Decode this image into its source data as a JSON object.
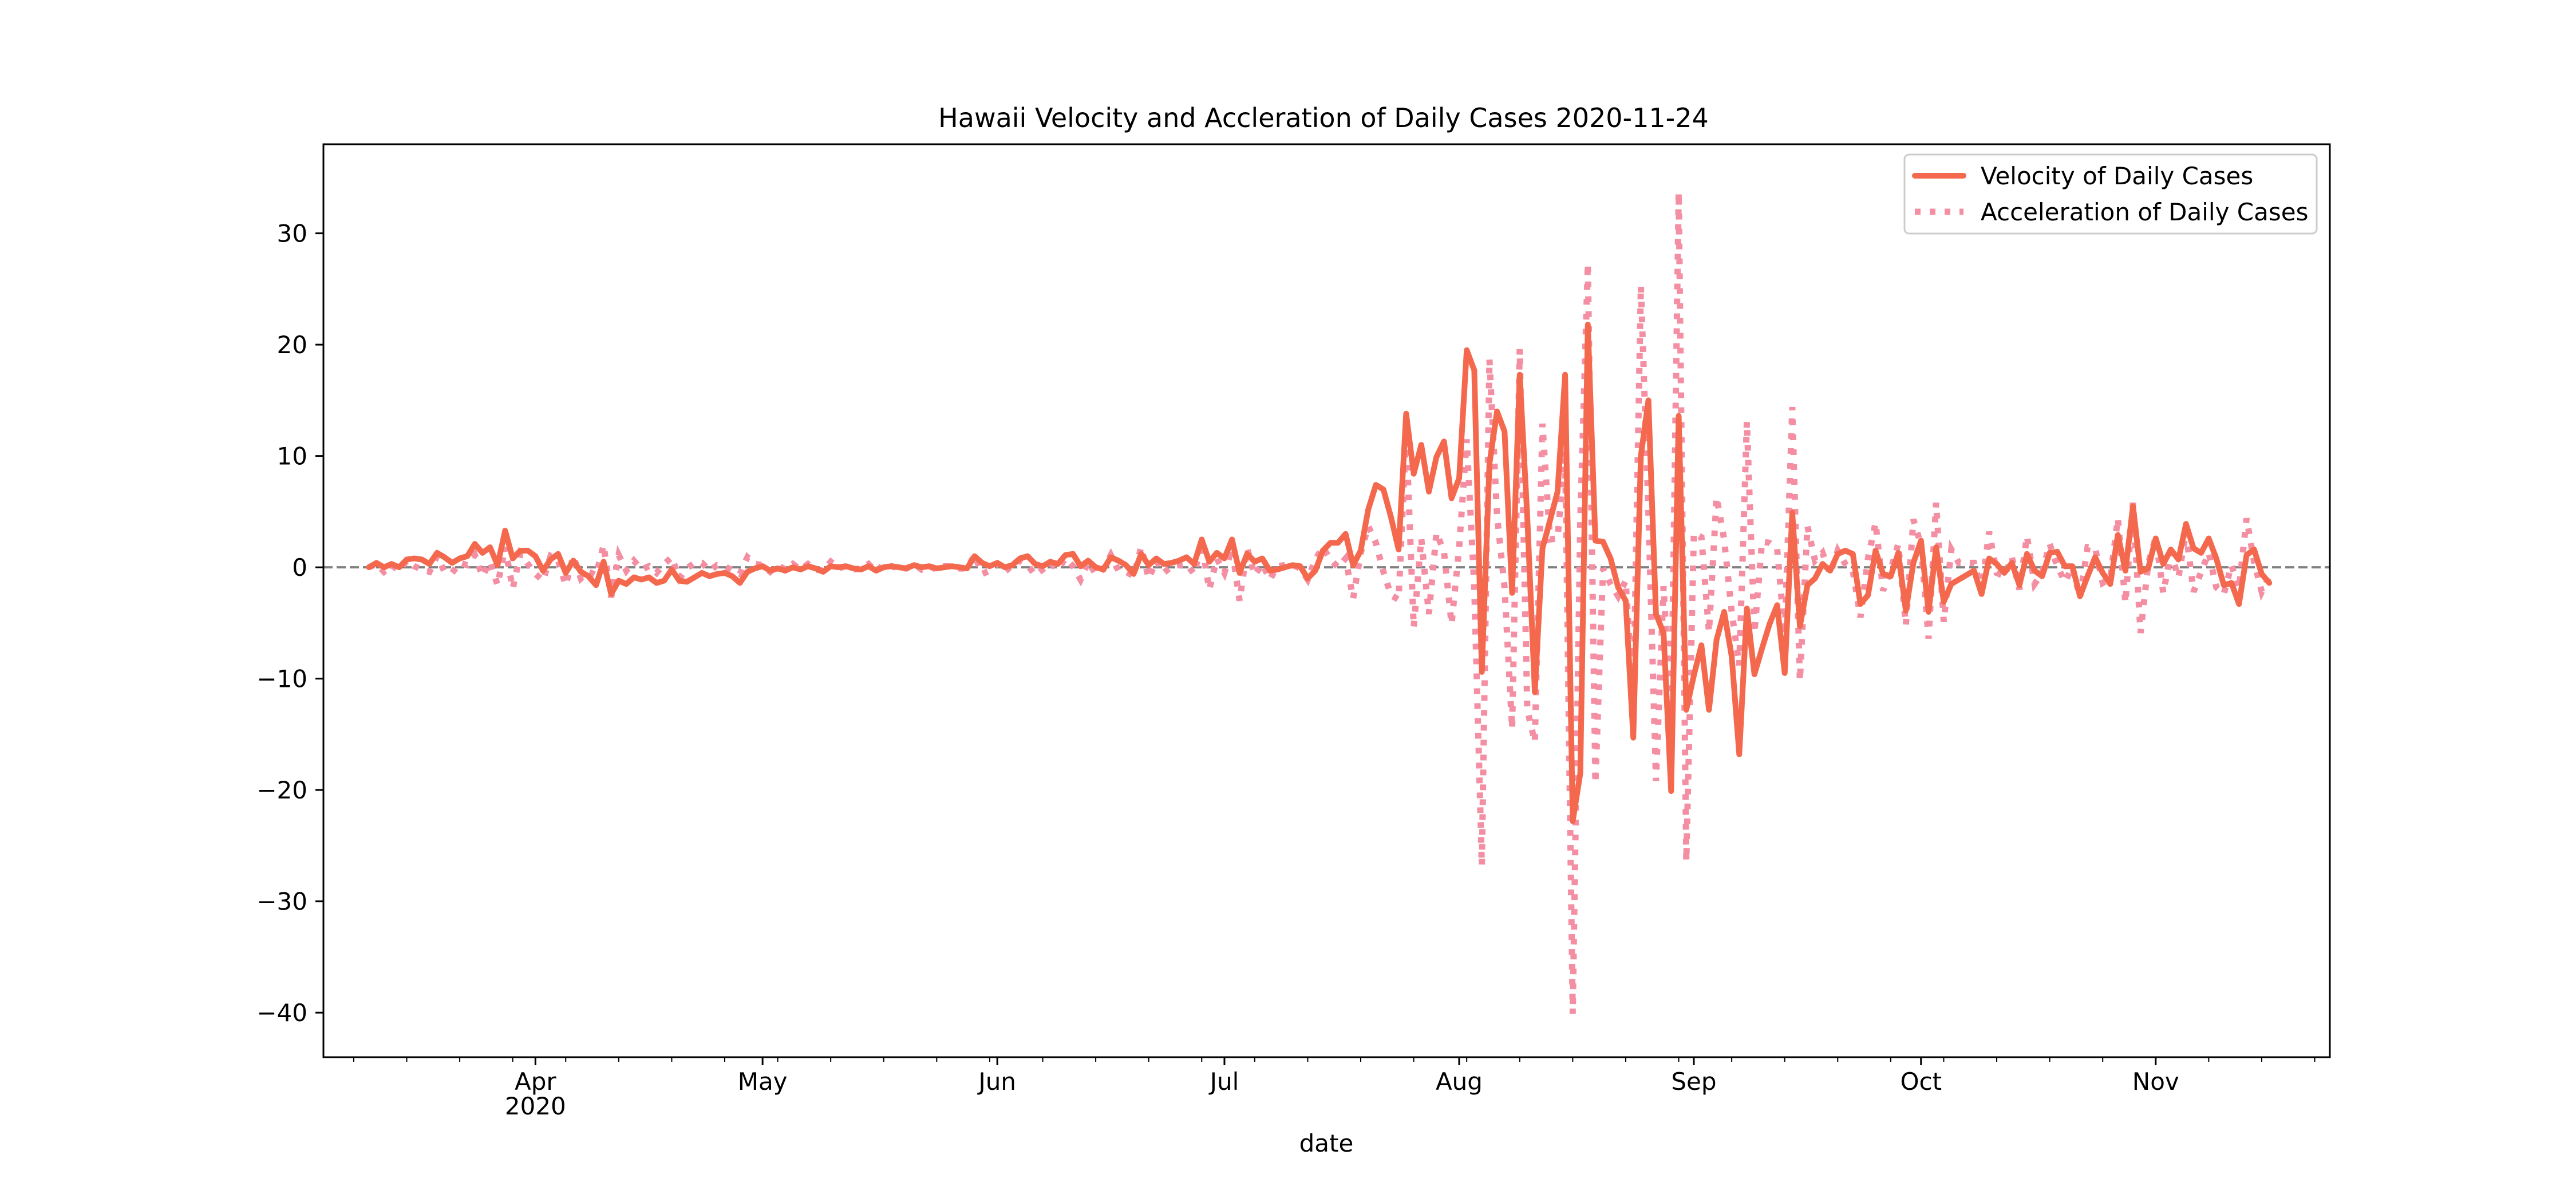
{
  "chart_data": {
    "type": "line",
    "title": "Hawaii Velocity and Accleration of Daily Cases 2020-11-24",
    "xlabel": "date",
    "ylabel": "",
    "x_start": "2020-03-10",
    "xlim": [
      "2020-03-04",
      "2020-11-24"
    ],
    "ylim": [
      -44,
      38
    ],
    "yticks": [
      -40,
      -30,
      -20,
      -10,
      0,
      10,
      20,
      30
    ],
    "xticks_major": [
      {
        "date": "2020-04-01",
        "label": "Apr",
        "sublabel": "2020"
      },
      {
        "date": "2020-05-01",
        "label": "May",
        "sublabel": ""
      },
      {
        "date": "2020-06-01",
        "label": "Jun",
        "sublabel": ""
      },
      {
        "date": "2020-07-01",
        "label": "Jul",
        "sublabel": ""
      },
      {
        "date": "2020-08-01",
        "label": "Aug",
        "sublabel": ""
      },
      {
        "date": "2020-09-01",
        "label": "Sep",
        "sublabel": ""
      },
      {
        "date": "2020-10-01",
        "label": "Oct",
        "sublabel": ""
      },
      {
        "date": "2020-11-01",
        "label": "Nov",
        "sublabel": ""
      }
    ],
    "reference_line": {
      "y": 0,
      "style": "dashed",
      "color": "#808080"
    },
    "grid": false,
    "legend": {
      "placement": "top-right"
    },
    "series": [
      {
        "name": "Velocity of Daily Cases",
        "color": "#f4694e",
        "style": "solid",
        "values": [
          0,
          0.4,
          0,
          0.3,
          0,
          0.7,
          0.8,
          0.7,
          0.3,
          1.3,
          0.9,
          0.4,
          0.8,
          1,
          2.1,
          1.3,
          1.8,
          0.2,
          3.3,
          0.8,
          1.5,
          1.5,
          1,
          -0.3,
          0.7,
          1.2,
          -0.5,
          0.6,
          -0.4,
          -0.8,
          -1.6,
          0.5,
          -2.4,
          -1.2,
          -1.5,
          -0.9,
          -1.1,
          -0.9,
          -1.4,
          -1.2,
          -0.2,
          -1.2,
          -1.3,
          -0.9,
          -0.5,
          -0.8,
          -0.6,
          -0.5,
          -0.8,
          -1.4,
          -0.4,
          -0.1,
          0.1,
          -0.3,
          -0.1,
          -0.3,
          0,
          -0.2,
          0.1,
          -0.1,
          -0.4,
          0.1,
          0,
          0.1,
          -0.1,
          -0.2,
          0.1,
          -0.3,
          0,
          0.1,
          0,
          -0.1,
          0.2,
          0,
          0.1,
          -0.1,
          0,
          0.1,
          0,
          -0.1,
          1,
          0.4,
          0.1,
          0.4,
          0,
          0.2,
          0.8,
          1,
          0.3,
          0.1,
          0.5,
          0.3,
          1.1,
          1.2,
          0.1,
          0.6,
          0,
          -0.2,
          0.9,
          0.6,
          0.2,
          -0.6,
          1.2,
          0.2,
          0.8,
          0.3,
          0.4,
          0.6,
          0.9,
          0.3,
          2.5,
          0.5,
          1.3,
          0.8,
          2.5,
          -0.5,
          1.2,
          0.5,
          0.8,
          -0.3,
          -0.2,
          0,
          0.2,
          0.1,
          -1,
          -0.3,
          1.5,
          2.2,
          2.2,
          3,
          0.2,
          1.5,
          5.2,
          7.4,
          7,
          4.5,
          1.6,
          13.8,
          8.4,
          11,
          6.8,
          9.9,
          11.3,
          6.2,
          8,
          19.5,
          17.7,
          -9.4,
          9.3,
          14,
          12.2,
          -2.3,
          17.3,
          4.5,
          -11.2,
          1.7,
          4.2,
          6.8,
          17.3,
          -22.8,
          -18.5,
          21.8,
          2.4,
          2.3,
          0.8,
          -1.8,
          -3,
          -15.3,
          10,
          15,
          -4.2,
          -5.9,
          -20.1,
          13.6,
          -12.8,
          -9.7,
          -7,
          -12.8,
          -6.5,
          -4,
          -8,
          -16.8,
          -3.7,
          -9.6,
          -7.3,
          -5.1,
          -3.4,
          -9.5,
          4.9,
          -5.3,
          -1.6,
          -1,
          0.3,
          -0.3,
          1.2,
          1.5,
          1.2,
          -3.3,
          -2.5,
          1.5,
          -0.6,
          -0.8,
          1.3,
          -3.9,
          0.4,
          2.4,
          -4,
          1.8,
          -3.1,
          -1.5,
          -1.1,
          -0.7,
          -0.3,
          -2.4,
          0.8,
          0.3,
          -0.5,
          0.4,
          -1.6,
          1.2,
          -0.3,
          -0.8,
          1.3,
          1.4,
          0.1,
          0.1,
          -2.6,
          -0.8,
          0.9,
          -0.5,
          -1.5,
          2.9,
          -0.3,
          5.5,
          -0.4,
          -0.1,
          2.6,
          0.3,
          1.6,
          0.7,
          3.9,
          1.7,
          1.3,
          2.6,
          0.8,
          -1.6,
          -1.4,
          -3.3,
          1.1,
          1.6,
          -0.6,
          -1.4
        ]
      },
      {
        "name": "Acceleration of Daily Cases",
        "color": "#f48fa3",
        "style": "dotted",
        "values": [
          0,
          0.3,
          -0.4,
          0.2,
          -0.3,
          0.6,
          0.1,
          -0.2,
          -0.4,
          1,
          -0.4,
          -0.5,
          0.4,
          0.2,
          1.1,
          -0.8,
          0.5,
          -1.6,
          1.8,
          -1.9,
          1.2,
          0.3,
          -0.6,
          -1.2,
          1,
          0.6,
          -1.6,
          1,
          -1,
          -0.4,
          -0.7,
          2,
          -2.7,
          1.1,
          -0.3,
          0.6,
          -0.2,
          0.1,
          -0.5,
          0.3,
          0.9,
          -1,
          -0.1,
          0.4,
          0.4,
          -0.3,
          0.2,
          0.1,
          -0.3,
          -0.6,
          0.9,
          0.3,
          0.2,
          -0.4,
          0.2,
          -0.2,
          0.3,
          -0.2,
          0.3,
          -0.2,
          -0.3,
          0.5,
          -0.1,
          0.1,
          -0.2,
          -0.1,
          0.3,
          -0.4,
          0.3,
          0.1,
          -0.1,
          -0.1,
          0.3,
          -0.2,
          0.1,
          -0.2,
          0.1,
          0.1,
          -0.1,
          -0.1,
          1.1,
          -0.6,
          -0.3,
          0.3,
          -0.4,
          0.2,
          0.6,
          0.2,
          -0.7,
          -0.2,
          0.4,
          -0.2,
          0.8,
          0.1,
          -1.1,
          0.5,
          -0.6,
          -0.2,
          1.1,
          -0.3,
          -0.4,
          -0.8,
          1.8,
          -1,
          0.6,
          -0.5,
          0.1,
          0.2,
          0.3,
          -0.6,
          2.2,
          -2,
          0.8,
          -0.5,
          1.7,
          -3,
          1.7,
          -0.7,
          0.3,
          -1.1,
          0.1,
          0.2,
          0.2,
          -0.1,
          -1.1,
          0.7,
          1.8,
          0.7,
          0,
          0.8,
          -2.8,
          1.3,
          3.7,
          2.2,
          -0.4,
          -2.5,
          -2.9,
          12.2,
          -5.4,
          2.6,
          -4.2,
          3.1,
          1.4,
          -5.1,
          1.8,
          11.5,
          -1.8,
          -26.8,
          18.7,
          4.7,
          -1.8,
          -14.5,
          19.6,
          -12.8,
          -15.7,
          12.9,
          2.5,
          2.6,
          10.5,
          -40.1,
          4.3,
          27.3,
          -19.4,
          -0.1,
          -1.5,
          -2.6,
          -1.2,
          -12.3,
          25.3,
          5,
          -19.2,
          -1.7,
          -14.2,
          33.7,
          -26.4,
          3.1,
          2.7,
          -5.8,
          6.3,
          2.5,
          -4,
          -8.8,
          13.1,
          -5.9,
          2.3,
          2.2,
          1.7,
          -6.1,
          14.4,
          -10.2,
          3.7,
          0.6,
          1.3,
          -0.6,
          1.5,
          0.3,
          -0.3,
          -4.5,
          0.8,
          4,
          -2.1,
          -0.2,
          2.1,
          -5.2,
          4.3,
          2,
          -6.4,
          5.8,
          -4.9,
          1.6,
          0.4,
          0.4,
          0.4,
          -2.1,
          3.2,
          -0.5,
          -0.8,
          0.9,
          -2,
          2.8,
          -1.5,
          -0.5,
          2.1,
          0.1,
          -1.3,
          0,
          -2.7,
          1.8,
          1.7,
          -1.4,
          -1,
          4.4,
          -3.2,
          5.8,
          -5.9,
          0.3,
          2.7,
          -2.3,
          1.3,
          -0.9,
          3.2,
          -2.2,
          -0.4,
          1.3,
          -1.8,
          -2.4,
          0.2,
          -1.9,
          4.4,
          0.5,
          -2.2,
          -0.8
        ]
      }
    ]
  }
}
